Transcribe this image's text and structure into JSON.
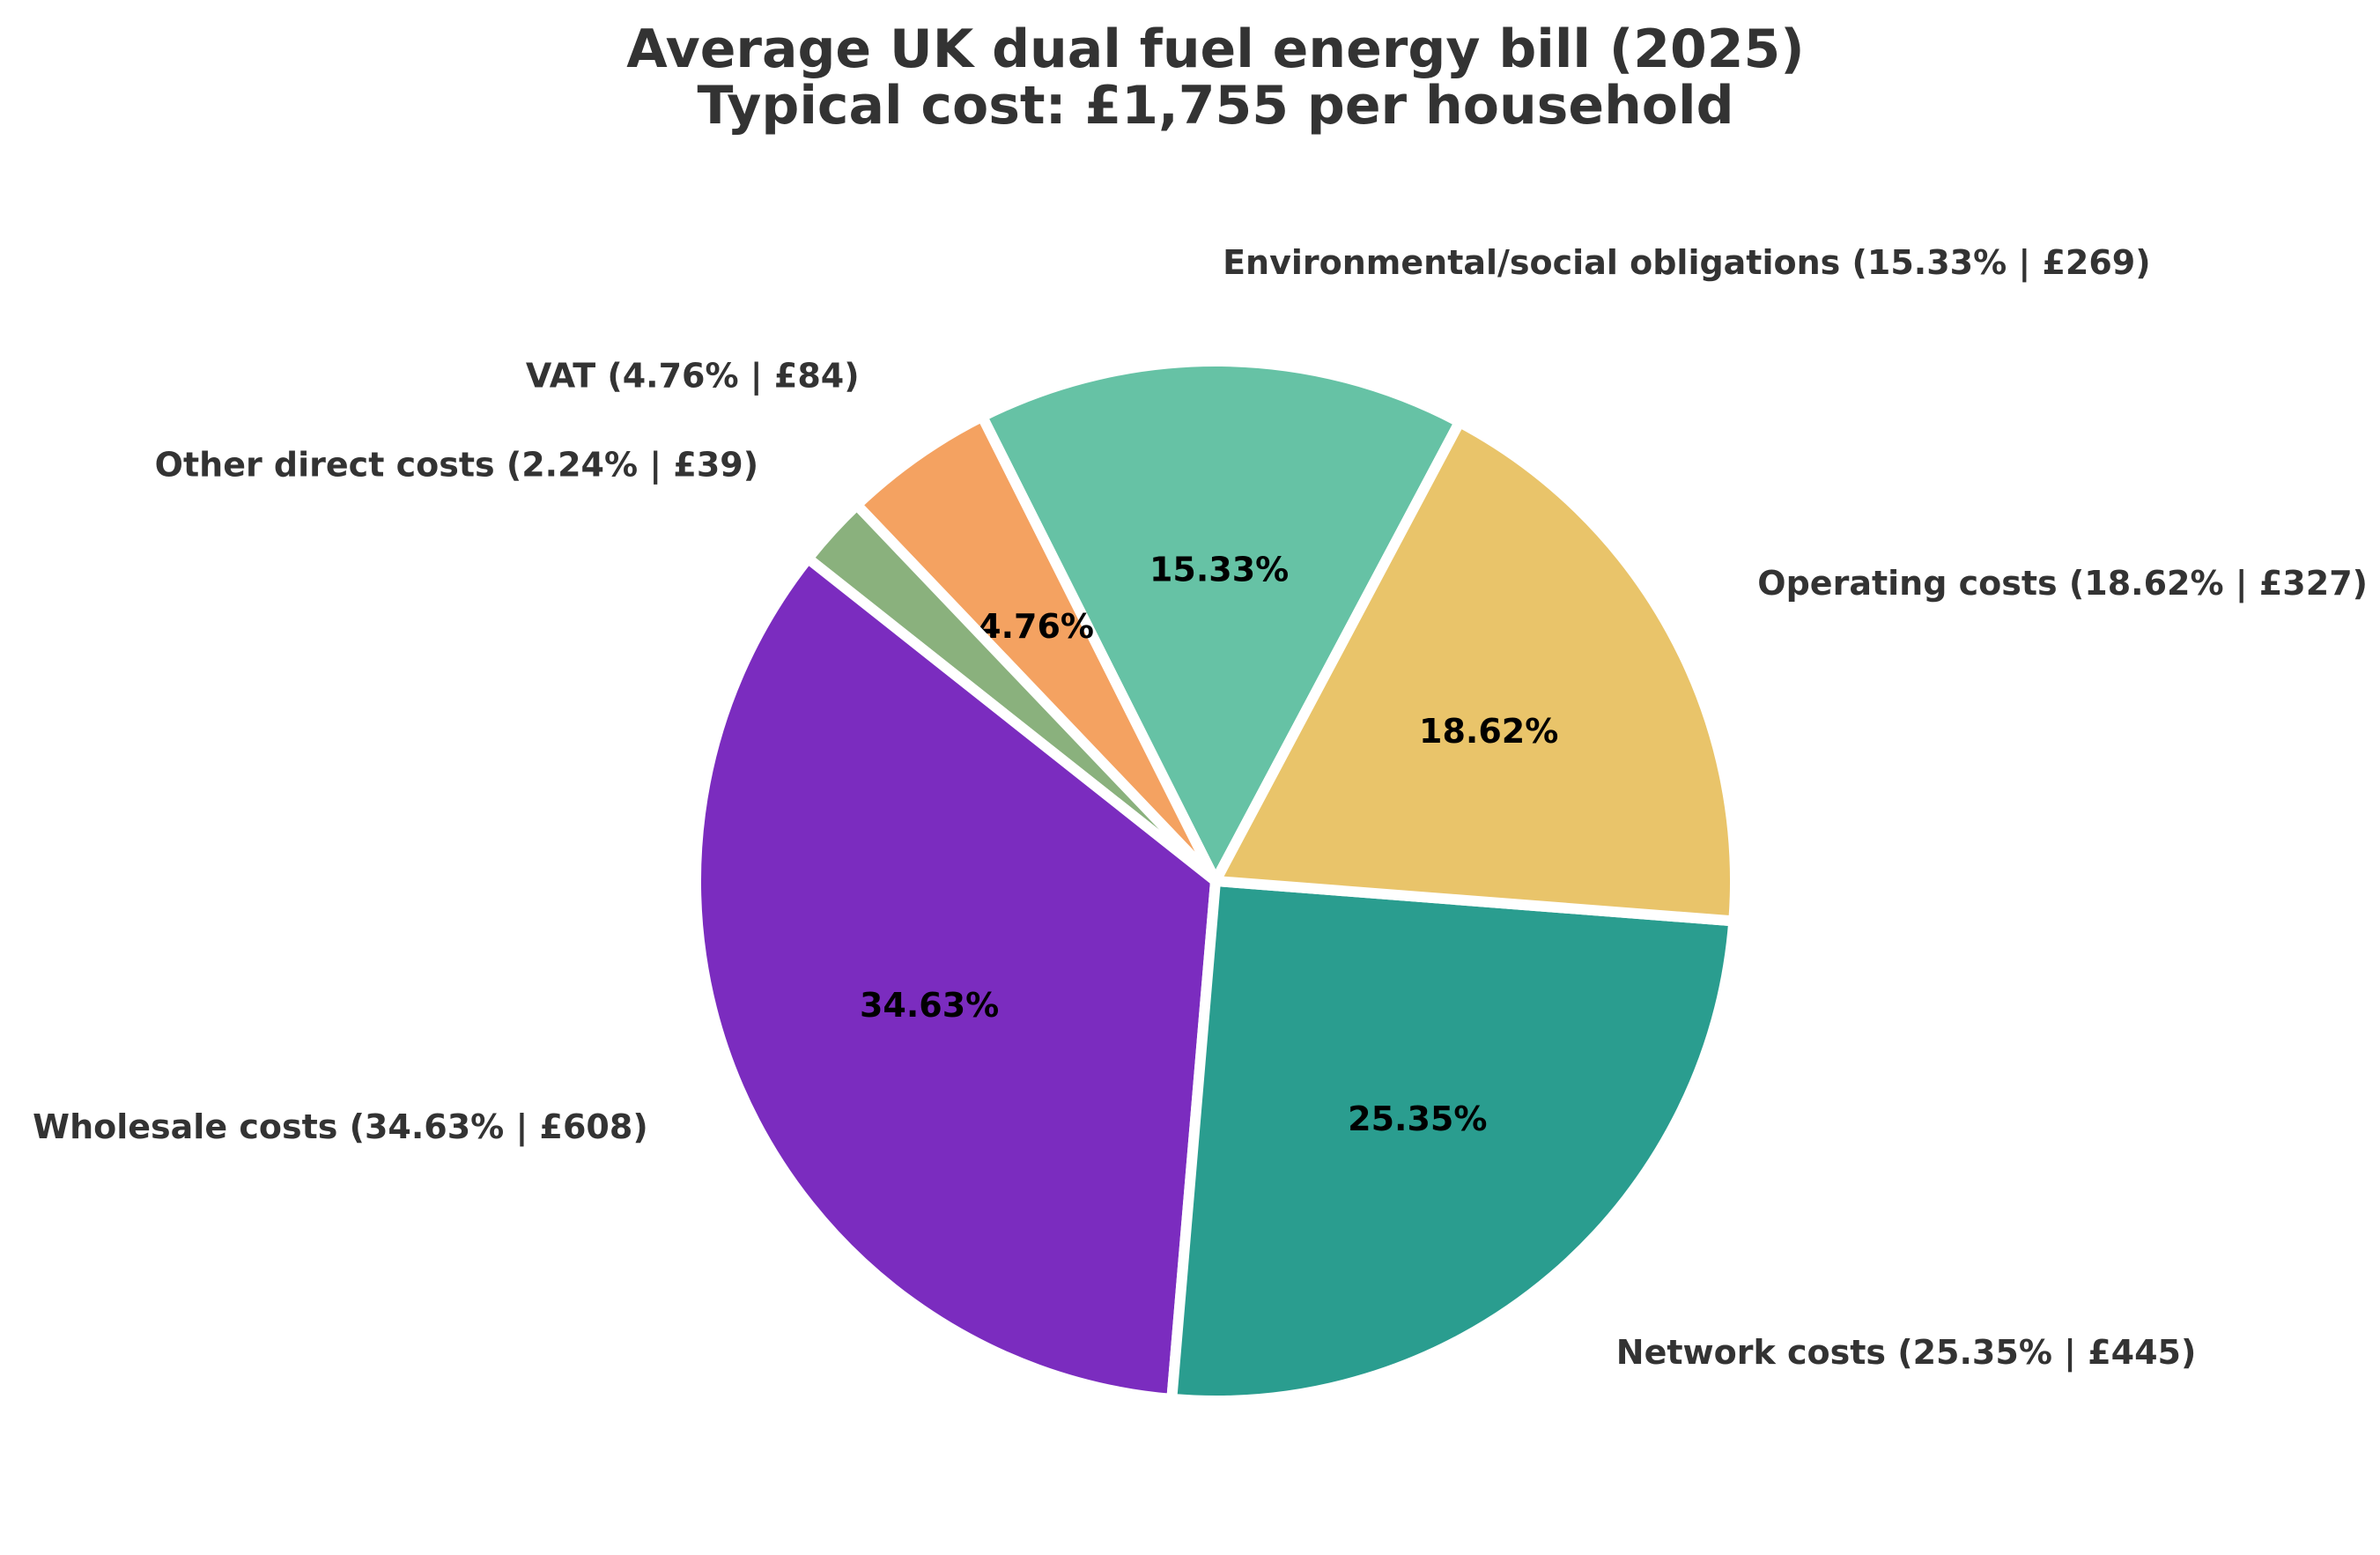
{
  "title": {
    "line1": "Average UK dual fuel energy bill (2025)",
    "line2": "Typical cost: £1,755 per household"
  },
  "colors": {
    "background": "#ffffff",
    "title_text": "#333333",
    "outer_label_text": "#333333",
    "pct_label_text": "#000000",
    "wedge_border": "#ffffff"
  },
  "chart_data": {
    "type": "pie",
    "title": "Average UK dual fuel energy bill (2025)",
    "subtitle": "Typical cost: £1,755 per household",
    "total_cost_display": "£1,755",
    "currency": "GBP",
    "legend_position": "none",
    "start_angle_deg": 62,
    "direction": "counterclockwise",
    "pct_label_distance": 0.6,
    "outer_label_distance": 1.19,
    "slices": [
      {
        "name": "Environmental/social obligations",
        "pct": 15.33,
        "amount_gbp": 269,
        "label": "Environmental/social obligations (15.33% | £269)",
        "pct_label": "15.33%",
        "color": "#66c2a5"
      },
      {
        "name": "VAT",
        "pct": 4.76,
        "amount_gbp": 84,
        "label": "VAT (4.76% | £84)",
        "pct_label": "4.76%",
        "color": "#f4a261"
      },
      {
        "name": "Other direct costs",
        "pct": 2.24,
        "amount_gbp": 39,
        "label": "Other direct costs (2.24% | £39)",
        "pct_label": null,
        "color": "#8ab17d"
      },
      {
        "name": "Wholesale costs",
        "pct": 34.63,
        "amount_gbp": 608,
        "label": "Wholesale costs (34.63% | £608)",
        "pct_label": "34.63%",
        "color": "#7b2cbf"
      },
      {
        "name": "Network costs",
        "pct": 25.35,
        "amount_gbp": 445,
        "label": "Network costs (25.35% | £445)",
        "pct_label": "25.35%",
        "color": "#2a9d8f"
      },
      {
        "name": "Operating costs",
        "pct": 18.62,
        "amount_gbp": 327,
        "label": "Operating costs (18.62% | £327)",
        "pct_label": "18.62%",
        "color": "#e9c46a"
      }
    ]
  }
}
